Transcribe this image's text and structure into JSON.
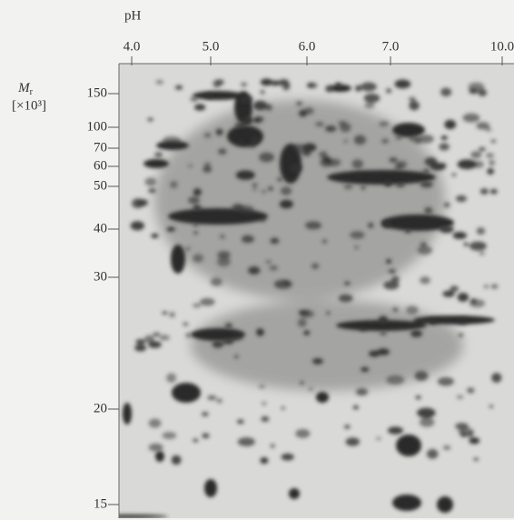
{
  "x_axis": {
    "label": "pH",
    "ticks": [
      "4.0",
      "5.0",
      "6.0",
      "7.0",
      "10.0"
    ]
  },
  "y_axis": {
    "label": "M",
    "label_sub": "r",
    "unit": "[×10³]",
    "ticks": [
      "150",
      "100",
      "70",
      "60",
      "50",
      "40",
      "30",
      "20",
      "15"
    ]
  }
}
